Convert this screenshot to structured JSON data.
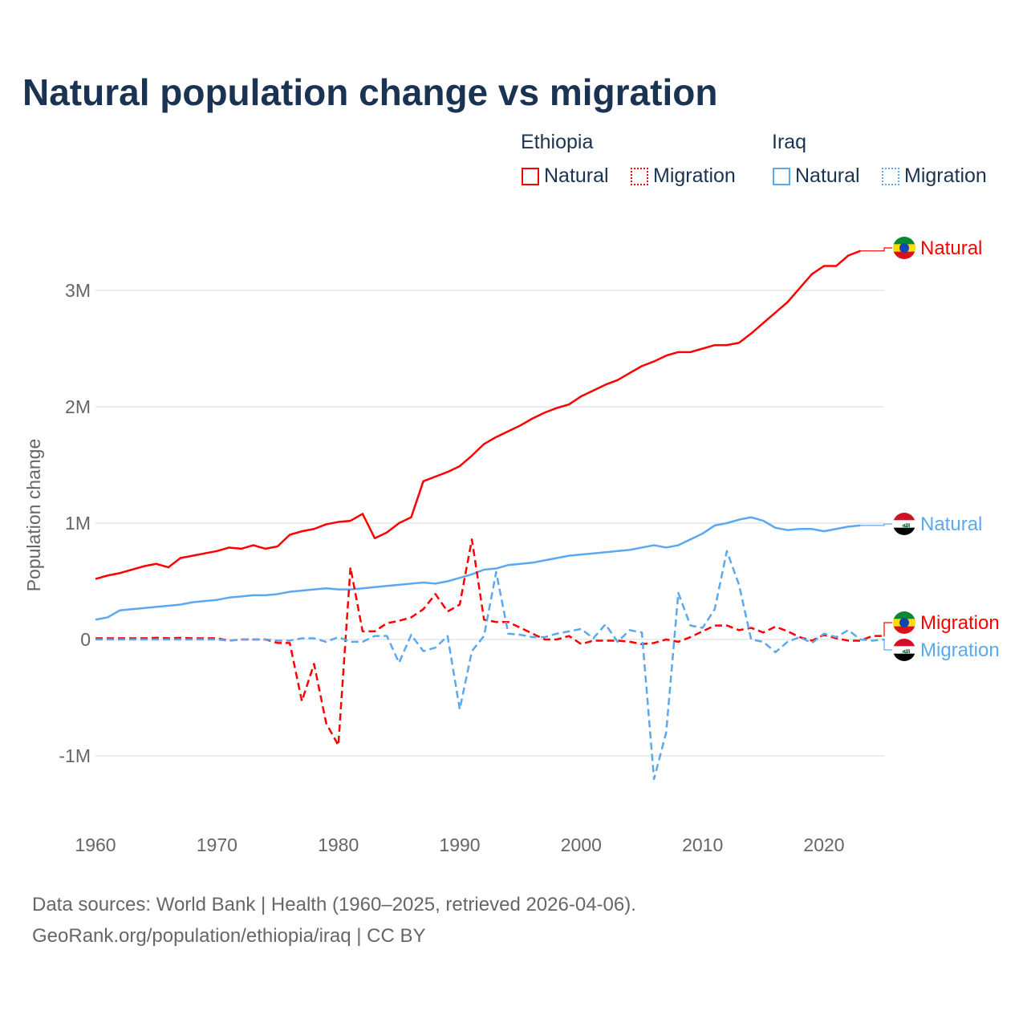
{
  "title": "Natural population change vs migration",
  "legend": {
    "groups": [
      {
        "name": "Ethiopia",
        "color": "#ff0000",
        "items": [
          "Natural",
          "Migration"
        ]
      },
      {
        "name": "Iraq",
        "color": "#5ca8ee",
        "items": [
          "Natural",
          "Migration"
        ]
      }
    ]
  },
  "source": {
    "line1": "Data sources: World Bank | Health (1960–2025, retrieved 2026-04-06).",
    "line2": "GeoRank.org/population/ethiopia/iraq | CC BY"
  },
  "chart_data": {
    "type": "line",
    "title": "Natural population change vs migration",
    "xlabel": "",
    "ylabel": "Population change",
    "xlim": [
      1960,
      2025
    ],
    "ylim": [
      -1.3,
      3.5
    ],
    "x_ticks": [
      "1960",
      "1970",
      "1980",
      "1990",
      "2000",
      "2010",
      "2020"
    ],
    "y_ticks": [
      {
        "value": -1,
        "label": "-1M"
      },
      {
        "value": 0,
        "label": "0"
      },
      {
        "value": 1,
        "label": "1M"
      },
      {
        "value": 2,
        "label": "2M"
      },
      {
        "value": 3,
        "label": "3M"
      }
    ],
    "units": "millions",
    "start_year": 1960,
    "series": [
      {
        "name": "Ethiopia Natural",
        "label": "Natural",
        "color": "#ff0000",
        "dash": false,
        "flag": "ethiopia",
        "values": [
          0.52,
          0.55,
          0.57,
          0.6,
          0.63,
          0.65,
          0.62,
          0.7,
          0.72,
          0.74,
          0.76,
          0.79,
          0.78,
          0.81,
          0.78,
          0.8,
          0.9,
          0.93,
          0.95,
          0.99,
          1.01,
          1.02,
          1.08,
          0.87,
          0.92,
          1.0,
          1.05,
          1.36,
          1.4,
          1.44,
          1.49,
          1.58,
          1.68,
          1.74,
          1.79,
          1.84,
          1.9,
          1.95,
          1.99,
          2.02,
          2.09,
          2.14,
          2.19,
          2.23,
          2.29,
          2.35,
          2.39,
          2.44,
          2.47,
          2.47,
          2.5,
          2.53,
          2.53,
          2.55,
          2.63,
          2.72,
          2.81,
          2.9,
          3.02,
          3.14,
          3.21,
          3.21,
          3.3,
          3.34
        ]
      },
      {
        "name": "Iraq Natural",
        "label": "Natural",
        "color": "#5ca8ee",
        "dash": false,
        "flag": "iraq",
        "values": [
          0.17,
          0.19,
          0.25,
          0.26,
          0.27,
          0.28,
          0.29,
          0.3,
          0.32,
          0.33,
          0.34,
          0.36,
          0.37,
          0.38,
          0.38,
          0.39,
          0.41,
          0.42,
          0.43,
          0.44,
          0.43,
          0.43,
          0.44,
          0.45,
          0.46,
          0.47,
          0.48,
          0.49,
          0.48,
          0.5,
          0.53,
          0.56,
          0.6,
          0.61,
          0.64,
          0.65,
          0.66,
          0.68,
          0.7,
          0.72,
          0.73,
          0.74,
          0.75,
          0.76,
          0.77,
          0.79,
          0.81,
          0.79,
          0.81,
          0.86,
          0.91,
          0.98,
          1.0,
          1.03,
          1.05,
          1.02,
          0.96,
          0.94,
          0.95,
          0.95,
          0.93,
          0.95,
          0.97,
          0.98
        ]
      },
      {
        "name": "Ethiopia Migration",
        "label": "Migration",
        "color": "#ff0000",
        "dash": true,
        "flag": "ethiopia",
        "values": [
          0.01,
          0.01,
          0.01,
          0.01,
          0.01,
          0.015,
          0.01,
          0.015,
          0.01,
          0.01,
          0.01,
          -0.01,
          0.0,
          0.0,
          0.0,
          -0.03,
          -0.03,
          -0.53,
          -0.21,
          -0.72,
          -0.91,
          0.62,
          0.07,
          0.07,
          0.14,
          0.16,
          0.19,
          0.26,
          0.39,
          0.24,
          0.3,
          0.86,
          0.17,
          0.15,
          0.15,
          0.1,
          0.05,
          0.0,
          0.0,
          0.03,
          -0.04,
          -0.01,
          -0.01,
          -0.01,
          -0.02,
          -0.04,
          -0.03,
          0.0,
          -0.02,
          0.02,
          0.07,
          0.12,
          0.12,
          0.08,
          0.1,
          0.06,
          0.11,
          0.07,
          0.02,
          -0.01,
          0.04,
          0.01,
          -0.01,
          -0.01,
          0.03,
          0.03
        ]
      },
      {
        "name": "Iraq Migration",
        "label": "Migration",
        "color": "#5ca8ee",
        "dash": true,
        "flag": "iraq",
        "values": [
          0.0,
          0.0,
          0.0,
          0.0,
          0.0,
          0.0,
          0.0,
          0.0,
          0.0,
          0.0,
          0.0,
          -0.01,
          0.0,
          0.0,
          0.0,
          -0.01,
          -0.01,
          0.01,
          0.01,
          -0.02,
          0.02,
          -0.02,
          -0.02,
          0.03,
          0.03,
          -0.2,
          0.04,
          -0.1,
          -0.07,
          0.03,
          -0.6,
          -0.1,
          0.03,
          0.58,
          0.05,
          0.04,
          0.02,
          0.02,
          0.05,
          0.07,
          0.09,
          0.01,
          0.13,
          -0.02,
          0.08,
          0.06,
          -1.2,
          -0.8,
          0.4,
          0.12,
          0.1,
          0.26,
          0.76,
          0.47,
          0.0,
          -0.02,
          -0.11,
          -0.02,
          0.02,
          -0.03,
          0.05,
          0.02,
          0.08,
          0.0,
          -0.01,
          0.0
        ]
      }
    ]
  }
}
